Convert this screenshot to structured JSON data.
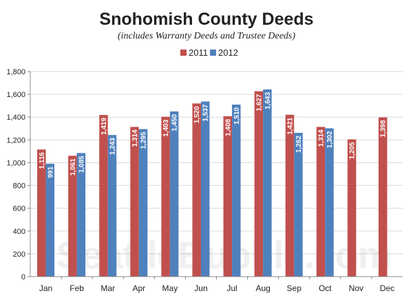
{
  "chart_data": {
    "type": "bar",
    "title": "Snohomish County Deeds",
    "subtitle": "(includes Warranty Deeds and Trustee Deeds)",
    "watermark": "SeattleBubble.com",
    "categories": [
      "Jan",
      "Feb",
      "Mar",
      "Apr",
      "May",
      "Jun",
      "Jul",
      "Aug",
      "Sep",
      "Oct",
      "Nov",
      "Dec"
    ],
    "series": [
      {
        "name": "2011",
        "color": "#c0504d",
        "values": [
          1116,
          1061,
          1419,
          1314,
          1403,
          1520,
          1408,
          1627,
          1421,
          1314,
          1205,
          1398
        ],
        "labels": [
          "1,116",
          "1,061",
          "1,419",
          "1,314",
          "1,403",
          "1,520",
          "1,408",
          "1,627",
          "1,421",
          "1,314",
          "1,205",
          "1,398"
        ]
      },
      {
        "name": "2012",
        "color": "#4f81bd",
        "values": [
          991,
          1085,
          1243,
          1295,
          1450,
          1537,
          1510,
          1643,
          1262,
          1302,
          null,
          null
        ],
        "labels": [
          "991",
          "1,085",
          "1,243",
          "1,295",
          "1,450",
          "1,537",
          "1,510",
          "1,643",
          "1,262",
          "1,302",
          "",
          ""
        ]
      }
    ],
    "ylim": [
      0,
      1800
    ],
    "yticks": [
      0,
      200,
      400,
      600,
      800,
      1000,
      1200,
      1400,
      1600,
      1800
    ],
    "ytick_labels": [
      "0",
      "200",
      "400",
      "600",
      "800",
      "1,000",
      "1,200",
      "1,400",
      "1,600",
      "1,800"
    ],
    "grid": true,
    "legend_position": "top-center"
  }
}
